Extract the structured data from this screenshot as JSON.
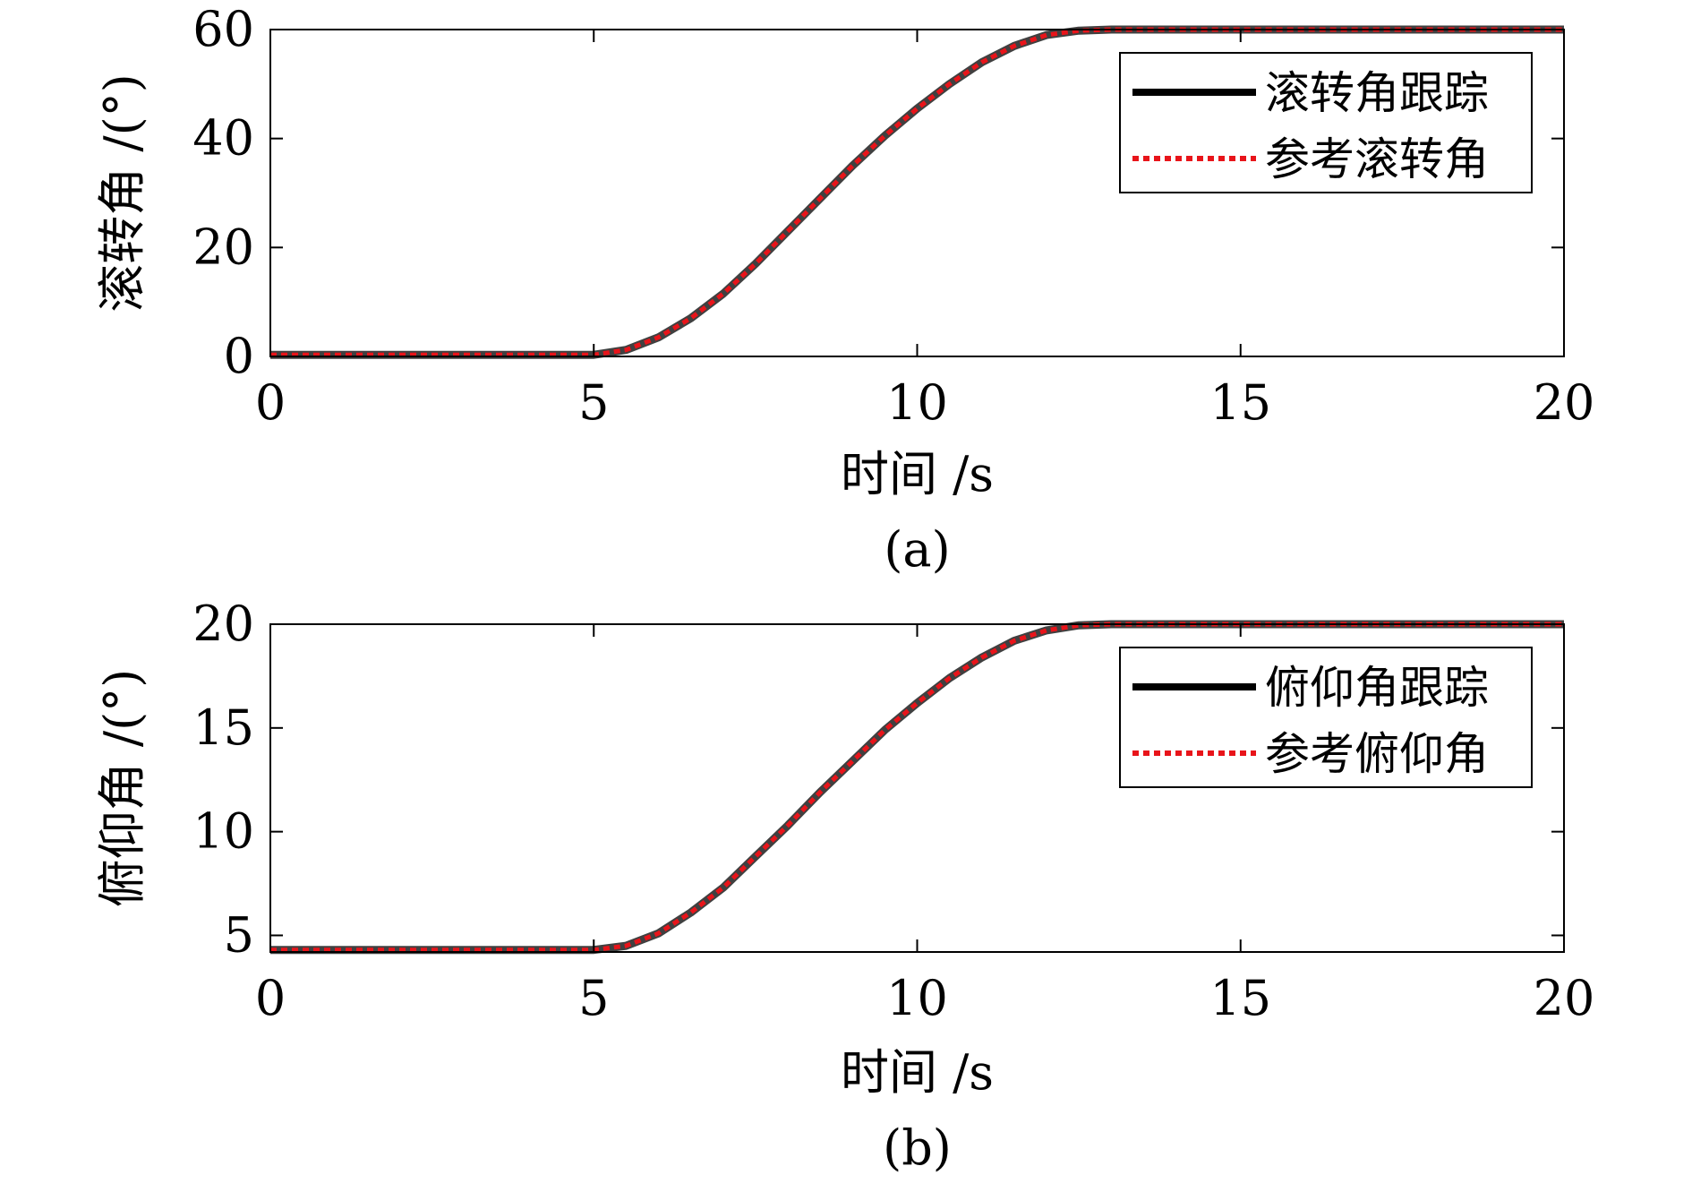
{
  "chart_data": [
    {
      "type": "line",
      "caption": "(a)",
      "xlabel": "时间 /s",
      "ylabel": "滚转角 /(°)",
      "xlim": [
        0,
        20
      ],
      "ylim": [
        0,
        60
      ],
      "xticks": [
        "0",
        "5",
        "10",
        "15",
        "20"
      ],
      "yticks": [
        "0",
        "20",
        "40",
        "60"
      ],
      "grid": false,
      "legend_position": "top-right",
      "series": [
        {
          "name": "滚转角跟踪",
          "color": "#000000",
          "style": "solid",
          "x": [
            0,
            5,
            5.5,
            6,
            6.5,
            7,
            7.5,
            8,
            8.5,
            9,
            9.5,
            10,
            10.5,
            11,
            11.5,
            12,
            12.5,
            13,
            15,
            20
          ],
          "y": [
            0.3,
            0.3,
            1.2,
            3.5,
            7.0,
            11.5,
            17.0,
            23.0,
            29.0,
            35.0,
            40.5,
            45.5,
            50.0,
            54.0,
            57.0,
            59.0,
            59.8,
            60.0,
            60.0,
            60.0
          ]
        },
        {
          "name": "参考滚转角",
          "color": "#e8141a",
          "style": "dotted",
          "x": [
            0,
            5,
            5.5,
            6,
            6.5,
            7,
            7.5,
            8,
            8.5,
            9,
            9.5,
            10,
            10.5,
            11,
            11.5,
            12,
            12.5,
            13,
            15,
            20
          ],
          "y": [
            0.3,
            0.3,
            1.2,
            3.5,
            7.0,
            11.5,
            17.0,
            23.0,
            29.0,
            35.0,
            40.5,
            45.5,
            50.0,
            54.0,
            57.0,
            59.0,
            59.8,
            60.0,
            60.0,
            60.0
          ]
        }
      ]
    },
    {
      "type": "line",
      "caption": "(b)",
      "xlabel": "时间 /s",
      "ylabel": "俯仰角 /(°)",
      "xlim": [
        0,
        20
      ],
      "ylim": [
        4.2,
        20
      ],
      "xticks": [
        "0",
        "5",
        "10",
        "15",
        "20"
      ],
      "yticks": [
        "5",
        "10",
        "15",
        "20"
      ],
      "grid": false,
      "legend_position": "top-right",
      "series": [
        {
          "name": "俯仰角跟踪",
          "color": "#000000",
          "style": "solid",
          "x": [
            0,
            5,
            5.5,
            6,
            6.5,
            7,
            7.5,
            8,
            8.5,
            9,
            9.5,
            10,
            10.5,
            11,
            11.5,
            12,
            12.5,
            13,
            15,
            20
          ],
          "y": [
            4.3,
            4.3,
            4.5,
            5.1,
            6.1,
            7.3,
            8.8,
            10.3,
            11.9,
            13.4,
            14.9,
            16.2,
            17.4,
            18.4,
            19.2,
            19.7,
            19.95,
            20.0,
            20.0,
            20.0
          ]
        },
        {
          "name": "参考俯仰角",
          "color": "#e8141a",
          "style": "dotted",
          "x": [
            0,
            5,
            5.5,
            6,
            6.5,
            7,
            7.5,
            8,
            8.5,
            9,
            9.5,
            10,
            10.5,
            11,
            11.5,
            12,
            12.5,
            13,
            15,
            20
          ],
          "y": [
            4.3,
            4.3,
            4.5,
            5.1,
            6.1,
            7.3,
            8.8,
            10.3,
            11.9,
            13.4,
            14.9,
            16.2,
            17.4,
            18.4,
            19.2,
            19.7,
            19.95,
            20.0,
            20.0,
            20.0
          ]
        }
      ]
    }
  ]
}
